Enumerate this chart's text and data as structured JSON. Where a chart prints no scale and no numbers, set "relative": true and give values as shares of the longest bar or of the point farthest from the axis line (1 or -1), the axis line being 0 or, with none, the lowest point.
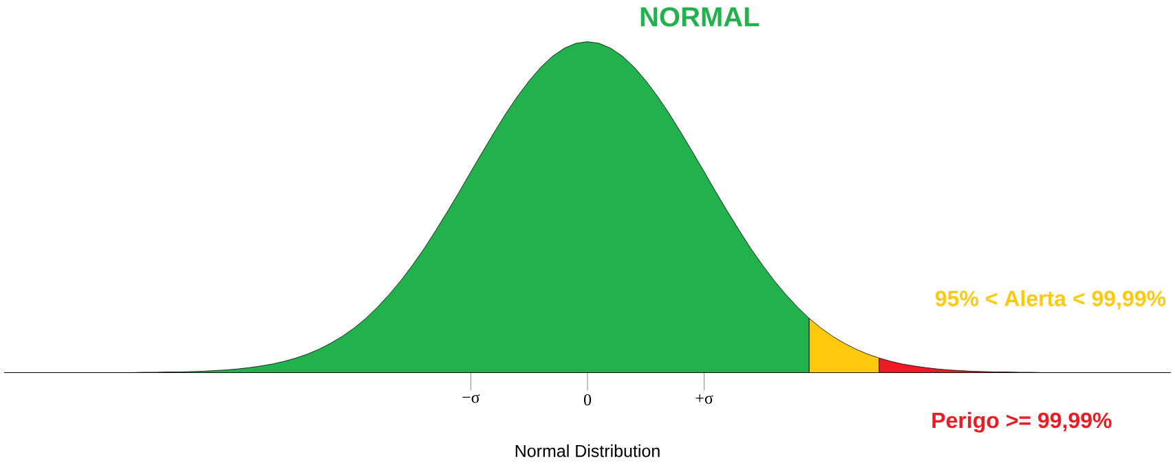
{
  "chart_data": {
    "type": "area",
    "relative": true,
    "xlabel": "Normal Distribution",
    "categories": [
      null,
      null,
      null,
      null,
      null,
      null,
      null,
      null,
      null,
      null,
      null,
      null,
      null,
      null,
      null,
      null,
      null,
      null,
      null,
      null,
      null,
      null,
      null,
      null,
      null,
      null,
      null,
      null,
      null,
      null,
      null,
      null,
      null,
      null,
      null,
      null,
      null,
      null,
      null,
      null,
      "−σ",
      null,
      null,
      null,
      null,
      null,
      null,
      null,
      null,
      null,
      "0",
      null,
      null,
      null,
      null,
      null,
      null,
      null,
      null,
      null,
      "+σ",
      null,
      null,
      null,
      null,
      null,
      null,
      null,
      null,
      null,
      null,
      null,
      null,
      null,
      null,
      null,
      null,
      null,
      null,
      null,
      null,
      null,
      null,
      null,
      null,
      null,
      null,
      null,
      null,
      null,
      null,
      null,
      null,
      null,
      null,
      null,
      null,
      null,
      null,
      null,
      null
    ],
    "series": [
      {
        "name": "NORMAL",
        "color": "#23b14d",
        "values": [
          0,
          0,
          0,
          0,
          0,
          0,
          0,
          0,
          0,
          0,
          0,
          0,
          0.001,
          0.001,
          0.002,
          0.002,
          0.003,
          0.004,
          0.006,
          0.008,
          0.011,
          0.015,
          0.02,
          0.026,
          0.034,
          0.044,
          0.056,
          0.071,
          0.089,
          0.11,
          0.135,
          0.164,
          0.198,
          0.236,
          0.278,
          0.325,
          0.375,
          0.43,
          0.487,
          0.546,
          0.607,
          0.667,
          0.726,
          0.783,
          0.835,
          0.882,
          0.923,
          0.956,
          0.98,
          0.995,
          1,
          0.995,
          0.98,
          0.956,
          0.923,
          0.882,
          0.835,
          0.783,
          0.726,
          0.667,
          0.607,
          0.546,
          0.487,
          0.43,
          0.375,
          0.325,
          0.278,
          0.236,
          0.198,
          0.164,
          null,
          null,
          null,
          null,
          null,
          null,
          null,
          null,
          null,
          null,
          null,
          null,
          null,
          null,
          null,
          null,
          null,
          null,
          null,
          null,
          null,
          null,
          null,
          null,
          null,
          null,
          null,
          null,
          null,
          null,
          null
        ]
      },
      {
        "name": "95% < Alerta < 99,99%",
        "color": "#ffc90e",
        "values": [
          null,
          null,
          null,
          null,
          null,
          null,
          null,
          null,
          null,
          null,
          null,
          null,
          null,
          null,
          null,
          null,
          null,
          null,
          null,
          null,
          null,
          null,
          null,
          null,
          null,
          null,
          null,
          null,
          null,
          null,
          null,
          null,
          null,
          null,
          null,
          null,
          null,
          null,
          null,
          null,
          null,
          null,
          null,
          null,
          null,
          null,
          null,
          null,
          null,
          null,
          null,
          null,
          null,
          null,
          null,
          null,
          null,
          null,
          null,
          null,
          null,
          null,
          null,
          null,
          null,
          null,
          null,
          null,
          null,
          0.164,
          0.135,
          0.11,
          0.089,
          0.071,
          0.056,
          0.044,
          null,
          null,
          null,
          null,
          null,
          null,
          null,
          null,
          null,
          null,
          null,
          null,
          null,
          null,
          null,
          null,
          null,
          null,
          null,
          null,
          null,
          null,
          null,
          null,
          null
        ]
      },
      {
        "name": "Perigo >= 99,99%",
        "color": "#ed1c24",
        "values": [
          null,
          null,
          null,
          null,
          null,
          null,
          null,
          null,
          null,
          null,
          null,
          null,
          null,
          null,
          null,
          null,
          null,
          null,
          null,
          null,
          null,
          null,
          null,
          null,
          null,
          null,
          null,
          null,
          null,
          null,
          null,
          null,
          null,
          null,
          null,
          null,
          null,
          null,
          null,
          null,
          null,
          null,
          null,
          null,
          null,
          null,
          null,
          null,
          null,
          null,
          null,
          null,
          null,
          null,
          null,
          null,
          null,
          null,
          null,
          null,
          null,
          null,
          null,
          null,
          null,
          null,
          null,
          null,
          null,
          null,
          null,
          null,
          null,
          null,
          null,
          0.044,
          0.034,
          0.026,
          0.02,
          0.015,
          0.011,
          0.008,
          0.006,
          0.004,
          0.003,
          0.002,
          0.002,
          0.001,
          0.001,
          0,
          0,
          0,
          0,
          0,
          0,
          0,
          0,
          0,
          0,
          0,
          0
        ]
      }
    ]
  }
}
